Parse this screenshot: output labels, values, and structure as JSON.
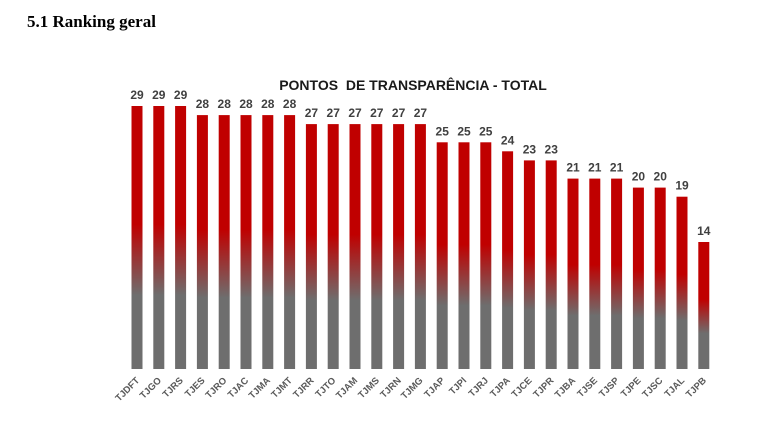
{
  "page": {
    "heading": "5.1 Ranking geral"
  },
  "chart_data": {
    "type": "bar",
    "title": "PONTOS  DE TRANSPARÊNCIA - TOTAL",
    "xlabel": "",
    "ylabel": "",
    "ylim": [
      0,
      29
    ],
    "grid": false,
    "legend": "none",
    "categories": [
      "TJDFT",
      "TJGO",
      "TJRS",
      "TJES",
      "TJRO",
      "TJAC",
      "TJMA",
      "TJMT",
      "TJRR",
      "TJTO",
      "TJAM",
      "TJMS",
      "TJRN",
      "TJMG",
      "TJAP",
      "TJPI",
      "TJRJ",
      "TJPA",
      "TJCE",
      "TJPR",
      "TJBA",
      "TJSE",
      "TJSP",
      "TJPE",
      "TJSC",
      "TJAL",
      "TJPB"
    ],
    "values": [
      29,
      29,
      29,
      28,
      28,
      28,
      28,
      28,
      27,
      27,
      27,
      27,
      27,
      27,
      25,
      25,
      25,
      24,
      23,
      23,
      21,
      21,
      21,
      20,
      20,
      19,
      14
    ],
    "colors": {
      "bar_top": "#c00000",
      "bar_mid": "#a01818",
      "bar_bottom": "#6e6e6e"
    }
  }
}
